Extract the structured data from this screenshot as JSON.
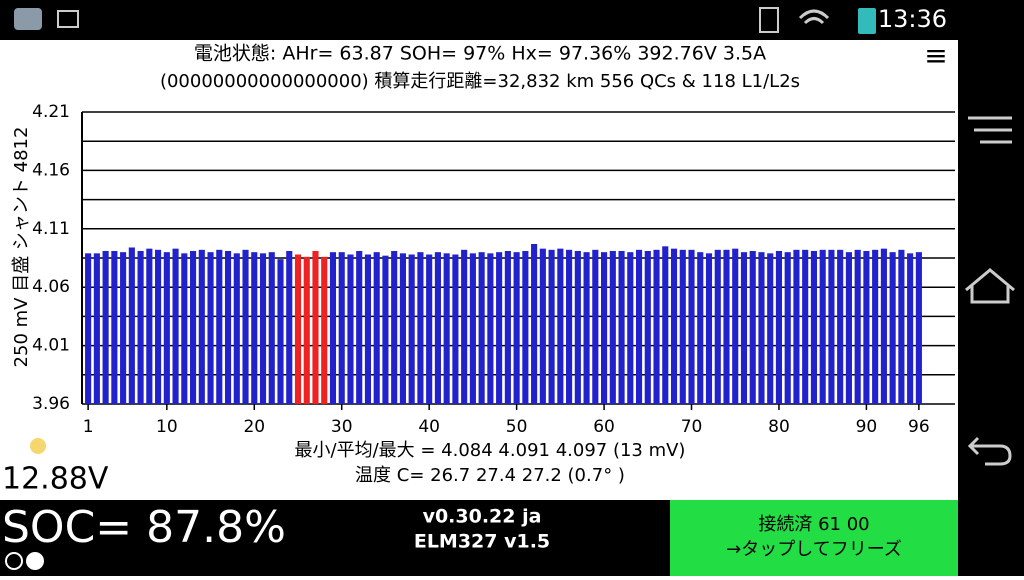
{
  "status_bar": {
    "time": "13:36"
  },
  "header": {
    "line1": "電池状態:  AHr= 63.87  SOH= 97%   Hx= 97.36%   392.76V 3.5A",
    "line2": "(00000000000000000) 積算走行距離=32,832 km  556 QCs  &  118 L1/L2s",
    "menu": "≡"
  },
  "chart_data": {
    "type": "bar",
    "y_label": "250 mV 目盛  シャント 4812",
    "x": [
      1,
      2,
      3,
      4,
      5,
      6,
      7,
      8,
      9,
      10,
      11,
      12,
      13,
      14,
      15,
      16,
      17,
      18,
      19,
      20,
      21,
      22,
      23,
      24,
      25,
      26,
      27,
      28,
      29,
      30,
      31,
      32,
      33,
      34,
      35,
      36,
      37,
      38,
      39,
      40,
      41,
      42,
      43,
      44,
      45,
      46,
      47,
      48,
      49,
      50,
      51,
      52,
      53,
      54,
      55,
      56,
      57,
      58,
      59,
      60,
      61,
      62,
      63,
      64,
      65,
      66,
      67,
      68,
      69,
      70,
      71,
      72,
      73,
      74,
      75,
      76,
      77,
      78,
      79,
      80,
      81,
      82,
      83,
      84,
      85,
      86,
      87,
      88,
      89,
      90,
      91,
      92,
      93,
      94,
      95,
      96
    ],
    "values": [
      4.089,
      4.089,
      4.091,
      4.091,
      4.09,
      4.094,
      4.091,
      4.093,
      4.092,
      4.09,
      4.093,
      4.089,
      4.091,
      4.092,
      4.09,
      4.092,
      4.091,
      4.089,
      4.092,
      4.09,
      4.089,
      4.09,
      4.084,
      4.091,
      4.088,
      4.086,
      4.091,
      4.086,
      4.09,
      4.09,
      4.088,
      4.091,
      4.088,
      4.09,
      4.087,
      4.091,
      4.089,
      4.088,
      4.09,
      4.088,
      4.09,
      4.089,
      4.088,
      4.092,
      4.089,
      4.09,
      4.089,
      4.09,
      4.091,
      4.09,
      4.091,
      4.097,
      4.093,
      4.092,
      4.093,
      4.092,
      4.091,
      4.09,
      4.092,
      4.09,
      4.091,
      4.091,
      4.09,
      4.092,
      4.091,
      4.092,
      4.095,
      4.093,
      4.092,
      4.092,
      4.09,
      4.089,
      4.092,
      4.092,
      4.093,
      4.09,
      4.091,
      4.09,
      4.089,
      4.091,
      4.09,
      4.092,
      4.092,
      4.091,
      4.092,
      4.092,
      4.092,
      4.09,
      4.092,
      4.091,
      4.092,
      4.093,
      4.09,
      4.092,
      4.089,
      4.09
    ],
    "color": "#2222cc",
    "highlight": [
      25,
      26,
      27,
      28
    ],
    "highlight_color": "#ee2222",
    "xlim": [
      0.3,
      96.7
    ],
    "xticks": [
      1,
      10,
      20,
      30,
      40,
      50,
      60,
      70,
      80,
      90,
      96
    ],
    "ylim": [
      3.96,
      4.21
    ],
    "yticks": [
      3.96,
      4.01,
      4.06,
      4.11,
      4.16,
      4.21
    ],
    "grid": true,
    "stats": "最小/平均/最大 = 4.084 4.091 4.097  (13 mV)",
    "temps": "温度 C= 26.7  27.4  27.2  (0.7° )"
  },
  "footer": {
    "aux_voltage": "12.88V",
    "soc": "SOC= 87.8%",
    "version": "v0.30.22 ja",
    "adapter": "ELM327 v1.5",
    "status": "接続済 61 00",
    "action": "→タップしてフリーズ"
  }
}
